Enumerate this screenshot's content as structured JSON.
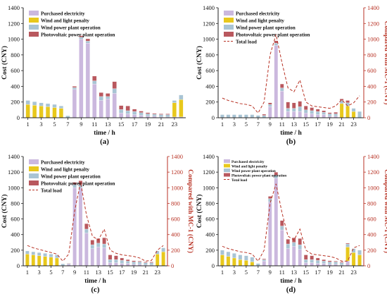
{
  "figure": {
    "colors": {
      "purchased": "#CBB8DE",
      "wind_penalty": "#E8C81C",
      "wind_op": "#A9C4D4",
      "pv_op": "#B9585E",
      "total_load": "#B83224",
      "axis": "#222222",
      "right_axis_text": "#B83224"
    }
  },
  "chart_data": [
    {
      "panel_label": "(a)",
      "type": "bar",
      "stacked": true,
      "xlabel": "time / h",
      "ylabel": "Cost (CNY)",
      "ylim": [
        0,
        1400
      ],
      "y_ticks": [
        0,
        200,
        400,
        600,
        800,
        1000,
        1200,
        1400
      ],
      "x_ticks": [
        1,
        3,
        5,
        7,
        9,
        11,
        13,
        15,
        17,
        19,
        21,
        23
      ],
      "categories": [
        1,
        2,
        3,
        4,
        5,
        6,
        7,
        8,
        9,
        10,
        11,
        12,
        13,
        14,
        15,
        16,
        17,
        18,
        19,
        20,
        21,
        22,
        23,
        24
      ],
      "legend": [
        "Purchased electricity",
        "Wind and light penalty",
        "Wind power plant operation",
        "Photovoltaic power plant operation"
      ],
      "series": [
        {
          "name": "Purchased electricity",
          "values": [
            0,
            0,
            0,
            0,
            0,
            0,
            0,
            360,
            1000,
            950,
            430,
            220,
            240,
            310,
            60,
            50,
            40,
            30,
            20,
            20,
            10,
            10,
            10,
            10
          ]
        },
        {
          "name": "Wind and light penalty",
          "values": [
            170,
            160,
            150,
            140,
            130,
            120,
            0,
            0,
            0,
            0,
            0,
            0,
            0,
            0,
            0,
            0,
            0,
            0,
            0,
            0,
            0,
            0,
            180,
            220
          ]
        },
        {
          "name": "Wind power plant operation",
          "values": [
            50,
            45,
            40,
            40,
            40,
            30,
            25,
            25,
            25,
            25,
            40,
            50,
            30,
            60,
            45,
            40,
            40,
            35,
            30,
            25,
            30,
            30,
            30,
            60
          ]
        },
        {
          "name": "Photovoltaic power plant operation",
          "values": [
            0,
            0,
            0,
            0,
            0,
            0,
            0,
            15,
            20,
            30,
            60,
            50,
            40,
            90,
            50,
            60,
            30,
            20,
            15,
            10,
            10,
            10,
            0,
            0
          ]
        }
      ]
    },
    {
      "panel_label": "(b)",
      "type": "bar",
      "stacked": true,
      "xlabel": "time / h",
      "ylabel": "Cost (CNY)",
      "y2label": "Compared with MC-1 (CNY)",
      "ylim": [
        0,
        1400
      ],
      "y_ticks": [
        0,
        200,
        400,
        600,
        800,
        1000,
        1200,
        1400
      ],
      "x_ticks": [
        1,
        3,
        5,
        7,
        9,
        11,
        13,
        15,
        17,
        19,
        21,
        23
      ],
      "categories": [
        1,
        2,
        3,
        4,
        5,
        6,
        7,
        8,
        9,
        10,
        11,
        12,
        13,
        14,
        15,
        16,
        17,
        18,
        19,
        20,
        21,
        22,
        23,
        24
      ],
      "legend": [
        "Purchased electricity",
        "Wind and light penalty",
        "Wind power plant operation",
        "Photovoltaic power plant operation",
        "Total load"
      ],
      "series": [
        {
          "name": "Purchased electricity",
          "values": [
            0,
            0,
            0,
            0,
            0,
            0,
            0,
            0,
            140,
            920,
            340,
            80,
            80,
            80,
            60,
            50,
            40,
            40,
            20,
            20,
            0,
            0,
            0,
            0
          ]
        },
        {
          "name": "Wind and light penalty",
          "values": [
            0,
            0,
            0,
            0,
            0,
            0,
            0,
            0,
            0,
            0,
            0,
            0,
            0,
            0,
            0,
            0,
            0,
            0,
            0,
            0,
            180,
            150,
            80,
            0
          ]
        },
        {
          "name": "Wind power plant operation",
          "values": [
            40,
            40,
            40,
            40,
            40,
            40,
            30,
            30,
            30,
            30,
            40,
            40,
            40,
            60,
            40,
            40,
            40,
            30,
            30,
            30,
            40,
            40,
            40,
            80
          ]
        },
        {
          "name": "Photovoltaic power plant operation",
          "values": [
            0,
            0,
            0,
            0,
            0,
            0,
            0,
            15,
            20,
            30,
            50,
            80,
            70,
            70,
            50,
            40,
            30,
            20,
            15,
            20,
            20,
            30,
            0,
            0
          ]
        }
      ],
      "line": {
        "name": "Total load",
        "values": [
          250,
          220,
          200,
          180,
          170,
          150,
          60,
          200,
          800,
          1060,
          700,
          380,
          330,
          480,
          200,
          150,
          140,
          130,
          120,
          150,
          230,
          150,
          190,
          280
        ]
      }
    },
    {
      "panel_label": "(c)",
      "type": "bar",
      "stacked": true,
      "xlabel": "time / h",
      "ylabel": "Cost (CNY)",
      "y2label": "Compared with MC-1 (CNY)",
      "ylim": [
        0,
        1400
      ],
      "y_ticks": [
        0,
        200,
        400,
        600,
        800,
        1000,
        1200,
        1400
      ],
      "x_ticks": [
        1,
        3,
        5,
        7,
        9,
        11,
        13,
        15,
        17,
        19,
        21,
        23
      ],
      "categories": [
        1,
        2,
        3,
        4,
        5,
        6,
        7,
        8,
        9,
        10,
        11,
        12,
        13,
        14,
        15,
        16,
        17,
        18,
        19,
        20,
        21,
        22,
        23,
        24
      ],
      "legend": [
        "Purchased electricity",
        "Wind and light penalty",
        "Wind power plant operation",
        "Photovoltaic power plant operation",
        "Total load"
      ],
      "series": [
        {
          "name": "Purchased electricity",
          "values": [
            0,
            0,
            0,
            0,
            0,
            0,
            0,
            20,
            1000,
            1000,
            420,
            220,
            240,
            230,
            40,
            40,
            30,
            30,
            20,
            20,
            10,
            10,
            0,
            0
          ]
        },
        {
          "name": "Wind and light penalty",
          "values": [
            150,
            140,
            130,
            120,
            110,
            100,
            0,
            0,
            0,
            0,
            0,
            0,
            0,
            0,
            0,
            0,
            0,
            0,
            0,
            0,
            0,
            0,
            150,
            180
          ]
        },
        {
          "name": "Wind power plant operation",
          "values": [
            40,
            40,
            40,
            40,
            40,
            40,
            25,
            10,
            40,
            40,
            50,
            50,
            50,
            50,
            40,
            40,
            40,
            30,
            30,
            30,
            30,
            30,
            40,
            50
          ]
        },
        {
          "name": "Photovoltaic power plant operation",
          "values": [
            0,
            0,
            0,
            0,
            0,
            0,
            0,
            5,
            30,
            50,
            70,
            60,
            60,
            80,
            60,
            50,
            30,
            20,
            15,
            10,
            10,
            10,
            0,
            0
          ]
        }
      ],
      "line": {
        "name": "Total load",
        "values": [
          260,
          230,
          210,
          190,
          170,
          150,
          60,
          150,
          700,
          1070,
          650,
          380,
          330,
          470,
          200,
          160,
          140,
          130,
          120,
          100,
          60,
          70,
          200,
          260
        ]
      }
    },
    {
      "panel_label": "(d)",
      "type": "bar",
      "stacked": true,
      "xlabel": "time / h",
      "ylabel": "Cost (CNY)",
      "y2label": "Compared with MC-1 (CNY)",
      "ylim": [
        0,
        1400
      ],
      "y_ticks": [
        0,
        200,
        400,
        600,
        800,
        1000,
        1200,
        1400
      ],
      "x_ticks": [
        1,
        3,
        5,
        7,
        9,
        11,
        13,
        15,
        17,
        19,
        21,
        23
      ],
      "categories": [
        1,
        2,
        3,
        4,
        5,
        6,
        7,
        8,
        9,
        10,
        11,
        12,
        13,
        14,
        15,
        16,
        17,
        18,
        19,
        20,
        21,
        22,
        23,
        24
      ],
      "legend": [
        "Purchased electricity",
        "Wind and light penalty",
        "Wind power plant operation",
        "Photovoltaic power plant operation",
        "Total load"
      ],
      "series": [
        {
          "name": "Purchased electricity",
          "values": [
            0,
            0,
            0,
            0,
            0,
            0,
            0,
            60,
            820,
            1120,
            460,
            220,
            250,
            210,
            40,
            40,
            30,
            30,
            20,
            20,
            10,
            60,
            0,
            0
          ]
        },
        {
          "name": "Wind and light penalty",
          "values": [
            140,
            120,
            100,
            80,
            70,
            50,
            0,
            0,
            0,
            0,
            0,
            0,
            0,
            0,
            0,
            0,
            0,
            0,
            0,
            0,
            0,
            180,
            170,
            140
          ]
        },
        {
          "name": "Wind power plant operation",
          "values": [
            60,
            60,
            60,
            60,
            60,
            60,
            30,
            20,
            40,
            40,
            50,
            60,
            50,
            60,
            40,
            40,
            40,
            30,
            30,
            30,
            30,
            40,
            50,
            60
          ]
        },
        {
          "name": "Photovoltaic power plant operation",
          "values": [
            0,
            0,
            0,
            0,
            0,
            0,
            0,
            10,
            30,
            40,
            70,
            60,
            60,
            80,
            60,
            50,
            30,
            20,
            15,
            10,
            10,
            10,
            0,
            0
          ]
        }
      ],
      "line": {
        "name": "Total load",
        "values": [
          250,
          220,
          200,
          180,
          170,
          150,
          60,
          200,
          800,
          1050,
          680,
          380,
          330,
          470,
          200,
          150,
          140,
          130,
          120,
          100,
          60,
          60,
          230,
          260
        ]
      }
    }
  ]
}
